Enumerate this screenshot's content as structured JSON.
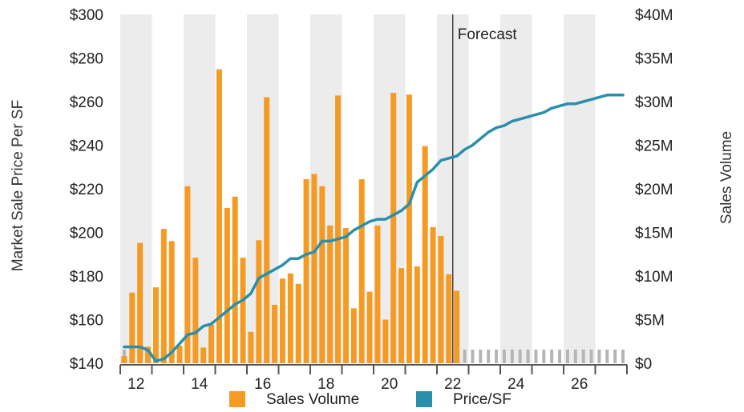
{
  "chart_data": {
    "type": "bar+line",
    "x_ticks": [
      "12",
      "14",
      "16",
      "18",
      "20",
      "22",
      "24",
      "26"
    ],
    "x_tick_values": [
      2012,
      2014,
      2016,
      2018,
      2020,
      2022,
      2024,
      2026
    ],
    "xlim": [
      2011.5,
      2027.5
    ],
    "forecast_label": "Forecast",
    "forecast_start": 2022.0,
    "y_left": {
      "label": "Market Sale Price Per SF",
      "lim": [
        140,
        300
      ],
      "ticks": [
        "$140",
        "$160",
        "$180",
        "$200",
        "$220",
        "$240",
        "$260",
        "$280",
        "$300"
      ],
      "tick_values": [
        140,
        160,
        180,
        200,
        220,
        240,
        260,
        280,
        300
      ]
    },
    "y_right": {
      "label": "Sales Volume",
      "lim": [
        0,
        40
      ],
      "unit": "$M",
      "ticks": [
        "$0",
        "$5M",
        "$10M",
        "$15M",
        "$20M",
        "$25M",
        "$30M",
        "$35M",
        "$40M"
      ],
      "tick_values": [
        0,
        5,
        10,
        15,
        20,
        25,
        30,
        35,
        40
      ]
    },
    "grid": "alternating year bands",
    "legend_position": "bottom",
    "colors": {
      "sales_volume": "#f59a23",
      "price_sf": "#2a8fab",
      "band": "#ececec",
      "forecast_line": "#444444",
      "stub": "#b5b5b5"
    },
    "series": [
      {
        "name": "Sales Volume",
        "type": "bar",
        "axis": "right",
        "x": [
          2011.625,
          2011.875,
          2012.125,
          2012.375,
          2012.625,
          2012.875,
          2013.125,
          2013.375,
          2013.625,
          2013.875,
          2014.125,
          2014.375,
          2014.625,
          2014.875,
          2015.125,
          2015.375,
          2015.625,
          2015.875,
          2016.125,
          2016.375,
          2016.625,
          2016.875,
          2017.125,
          2017.375,
          2017.625,
          2017.875,
          2018.125,
          2018.375,
          2018.625,
          2018.875,
          2019.125,
          2019.375,
          2019.625,
          2019.875,
          2020.125,
          2020.375,
          2020.625,
          2020.875,
          2021.125,
          2021.375,
          2021.625,
          2021.875,
          2022.125
        ],
        "values": [
          0.8,
          8.1,
          13.8,
          1.9,
          8.7,
          15.4,
          14.0,
          2.0,
          20.3,
          12.1,
          1.8,
          4.4,
          33.7,
          17.8,
          19.1,
          12.1,
          3.6,
          14.1,
          30.5,
          6.7,
          9.7,
          10.3,
          9.1,
          21.1,
          21.7,
          20.3,
          15.8,
          30.7,
          15.5,
          6.3,
          21.1,
          8.2,
          15.8,
          5.0,
          31.0,
          10.9,
          30.8,
          11.1,
          24.9,
          15.6,
          14.6,
          10.2,
          8.3
        ]
      },
      {
        "name": "Price/SF",
        "type": "line",
        "axis": "left",
        "x": [
          2011.625,
          2011.875,
          2012.125,
          2012.375,
          2012.625,
          2012.875,
          2013.125,
          2013.375,
          2013.625,
          2013.875,
          2014.125,
          2014.375,
          2014.625,
          2014.875,
          2015.125,
          2015.375,
          2015.625,
          2015.875,
          2016.125,
          2016.375,
          2016.625,
          2016.875,
          2017.125,
          2017.375,
          2017.625,
          2017.875,
          2018.125,
          2018.375,
          2018.625,
          2018.875,
          2019.125,
          2019.375,
          2019.625,
          2019.875,
          2020.125,
          2020.375,
          2020.625,
          2020.875,
          2021.125,
          2021.375,
          2021.625,
          2021.875,
          2022.125,
          2022.375,
          2022.625,
          2022.875,
          2023.125,
          2023.375,
          2023.625,
          2023.875,
          2024.125,
          2024.375,
          2024.625,
          2024.875,
          2025.125,
          2025.375,
          2025.625,
          2025.875,
          2026.125,
          2026.375,
          2026.625,
          2026.875,
          2027.125,
          2027.375
        ],
        "values": [
          147.5,
          147.5,
          147.5,
          146,
          141,
          142,
          145,
          149,
          153,
          154,
          157,
          158,
          161,
          164,
          167,
          169,
          172,
          179,
          181,
          183,
          185,
          188,
          188,
          190,
          191,
          196,
          196,
          197,
          198,
          201,
          203,
          205,
          206,
          206,
          208,
          210,
          213,
          223,
          226,
          229,
          233,
          234,
          235,
          238,
          240,
          243,
          246,
          248,
          249,
          251,
          252,
          253,
          254,
          255,
          257,
          258,
          259,
          259,
          260,
          261,
          262,
          263,
          263,
          263
        ]
      }
    ]
  }
}
